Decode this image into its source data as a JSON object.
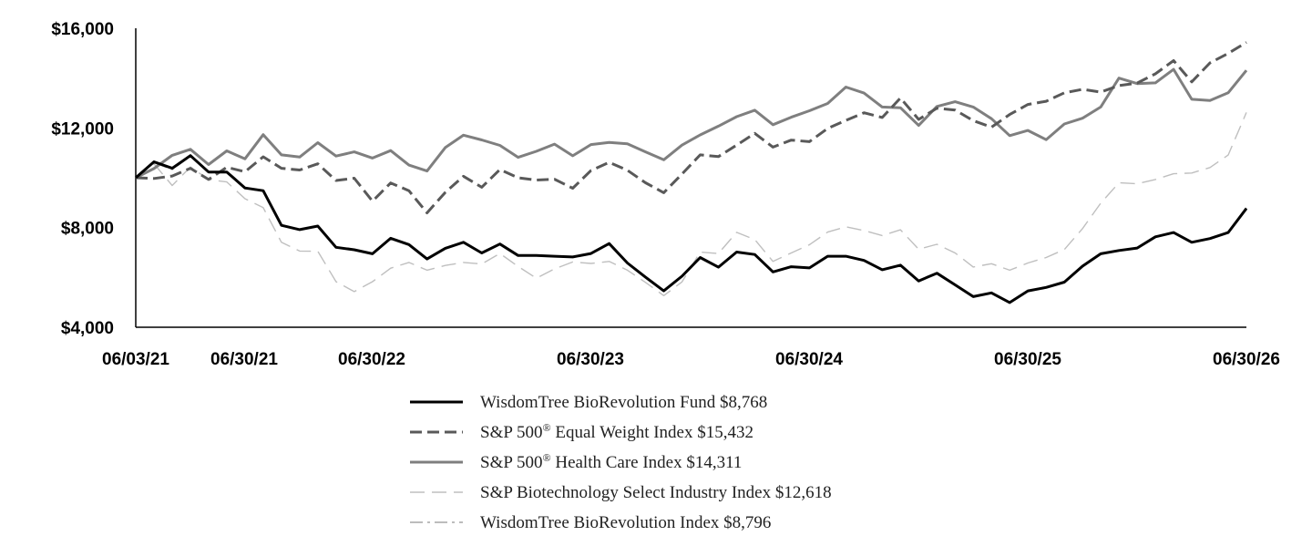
{
  "chart_data": {
    "type": "line",
    "title": "",
    "xlabel": "",
    "ylabel": "",
    "ylim": [
      4000,
      16000
    ],
    "grid": false,
    "legend_placement": "bottom-center",
    "y_ticks": [
      {
        "value": 4000,
        "label": "$4,000"
      },
      {
        "value": 8000,
        "label": "$8,000"
      },
      {
        "value": 12000,
        "label": "$12,000"
      },
      {
        "value": 16000,
        "label": "$16,000"
      }
    ],
    "x_tick_labels": [
      "06/03/21",
      "06/30/21",
      "06/30/22",
      "06/30/23",
      "06/30/24",
      "06/30/25",
      "06/30/26"
    ],
    "series": [
      {
        "name": "WisdomTree BioRevolution Fund",
        "legend_main": "WisdomTree BioRevolution Fund $8,768",
        "legend_sup": "",
        "legend_rest": "",
        "style": "solid",
        "color": "#000000",
        "values": [
          10000,
          10640,
          10380,
          10890,
          10230,
          10230,
          9590,
          9480,
          8090,
          7920,
          8060,
          7210,
          7110,
          6950,
          7570,
          7320,
          6740,
          7170,
          7410,
          6980,
          7340,
          6880,
          6880,
          6850,
          6820,
          6960,
          7360,
          6580,
          6010,
          5460,
          6050,
          6800,
          6410,
          7020,
          6920,
          6220,
          6430,
          6380,
          6850,
          6850,
          6680,
          6310,
          6490,
          5860,
          6170,
          5700,
          5230,
          5380,
          4990,
          5460,
          5600,
          5810,
          6450,
          6950,
          7080,
          7180,
          7630,
          7800,
          7410,
          7560,
          7800,
          8768
        ]
      },
      {
        "name": "S&P 500 Equal Weight Index",
        "legend_main": "S&P 500",
        "legend_sup": "®",
        "legend_rest": " Equal Weight Index $15,432",
        "style": "dashed",
        "color": "#595959",
        "values": [
          10000,
          9970,
          10070,
          10380,
          9930,
          10420,
          10240,
          10840,
          10380,
          10310,
          10560,
          9890,
          9980,
          9060,
          9790,
          9480,
          8590,
          9410,
          10060,
          9620,
          10330,
          10000,
          9910,
          9940,
          9580,
          10290,
          10620,
          10300,
          9800,
          9400,
          10150,
          10920,
          10850,
          11310,
          11780,
          11230,
          11510,
          11450,
          11980,
          12300,
          12610,
          12420,
          13200,
          12340,
          12790,
          12720,
          12290,
          12030,
          12540,
          12940,
          13070,
          13410,
          13550,
          13440,
          13700,
          13800,
          14170,
          14700,
          13850,
          14610,
          14990,
          15432
        ]
      },
      {
        "name": "S&P 500 Health Care Index",
        "legend_main": "S&P 500",
        "legend_sup": "®",
        "legend_rest": " Health Care Index $14,311",
        "style": "solid",
        "color": "#7f7f7f",
        "values": [
          10000,
          10370,
          10900,
          11140,
          10530,
          11080,
          10760,
          11730,
          10920,
          10830,
          11410,
          10870,
          11040,
          10790,
          11090,
          10510,
          10270,
          11210,
          11710,
          11520,
          11300,
          10820,
          11060,
          11350,
          10880,
          11330,
          11420,
          11360,
          11040,
          10720,
          11310,
          11720,
          12070,
          12450,
          12710,
          12130,
          12430,
          12690,
          12980,
          13640,
          13400,
          12840,
          12810,
          12100,
          12860,
          13050,
          12840,
          12370,
          11690,
          11900,
          11530,
          12160,
          12390,
          12840,
          14000,
          13780,
          13810,
          14350,
          13150,
          13100,
          13410,
          14311
        ]
      },
      {
        "name": "S&P Biotechnology Select Industry Index",
        "legend_main": "S&P Biotechnology Select Industry Index $12,618",
        "legend_sup": "",
        "legend_rest": "",
        "style": "long-dash",
        "color": "#bfbfbf",
        "values": [
          10000,
          10560,
          9690,
          10430,
          9930,
          9830,
          9160,
          8800,
          7410,
          7060,
          7050,
          5830,
          5430,
          5830,
          6370,
          6600,
          6290,
          6480,
          6600,
          6540,
          6960,
          6440,
          5970,
          6340,
          6620,
          6560,
          6640,
          6290,
          5800,
          5270,
          5820,
          7020,
          6960,
          7810,
          7520,
          6640,
          6980,
          7310,
          7820,
          8030,
          7880,
          7680,
          7910,
          7130,
          7330,
          6980,
          6420,
          6550,
          6290,
          6580,
          6800,
          7120,
          7960,
          8980,
          9800,
          9760,
          9930,
          10160,
          10190,
          10410,
          10910,
          12618
        ]
      },
      {
        "name": "WisdomTree BioRevolution Index",
        "legend_main": "WisdomTree BioRevolution Index $8,796",
        "legend_sup": "",
        "legend_rest": "",
        "style": "dash-dot",
        "color": "#a6a6a6",
        "values": [
          10000,
          10600,
          10330,
          10860,
          10200,
          10200,
          9560,
          9460,
          8070,
          7900,
          8040,
          7190,
          7100,
          6940,
          7560,
          7310,
          6730,
          7160,
          7400,
          6970,
          7330,
          6870,
          6870,
          6840,
          6810,
          6950,
          7350,
          6570,
          6000,
          5450,
          6040,
          6790,
          6400,
          7010,
          6910,
          6210,
          6420,
          6370,
          6840,
          6840,
          6670,
          6300,
          6480,
          5850,
          6160,
          5690,
          5220,
          5370,
          4980,
          5450,
          5590,
          5800,
          6440,
          6940,
          7070,
          7170,
          7620,
          7790,
          7400,
          7550,
          7790,
          8796
        ]
      }
    ]
  }
}
